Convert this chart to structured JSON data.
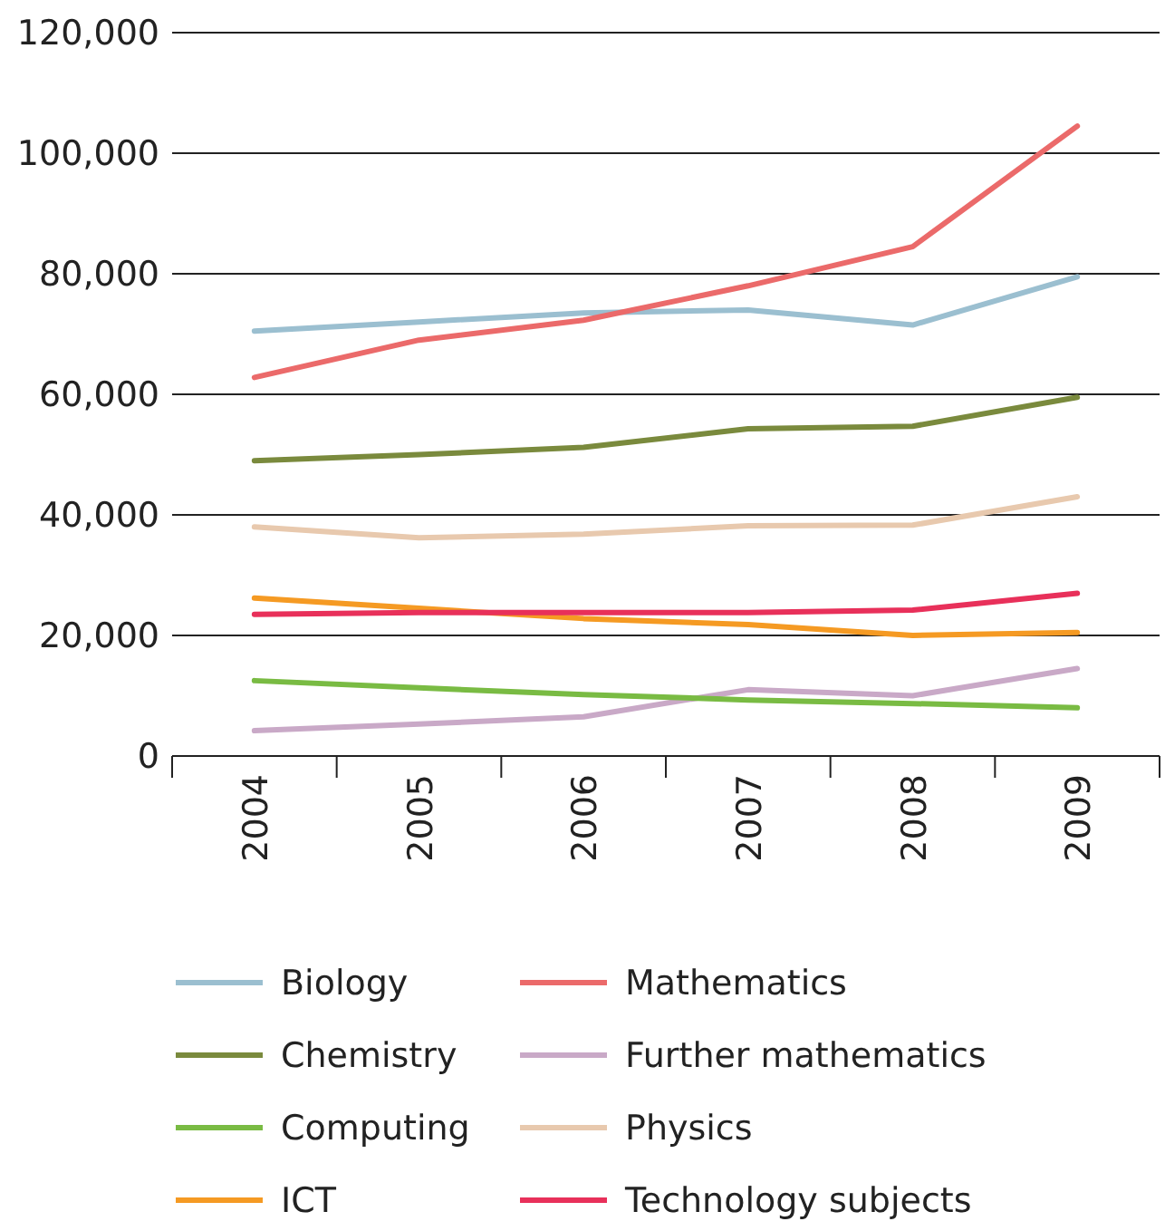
{
  "chart_data": {
    "type": "line",
    "categories": [
      "2004",
      "2005",
      "2006",
      "2007",
      "2008",
      "2009"
    ],
    "ylim": [
      0,
      120000
    ],
    "yticks": [
      {
        "value": 0,
        "label": "0"
      },
      {
        "value": 20000,
        "label": "20,000"
      },
      {
        "value": 40000,
        "label": "40,000"
      },
      {
        "value": 60000,
        "label": "60,000"
      },
      {
        "value": 80000,
        "label": "80,000"
      },
      {
        "value": 100000,
        "label": "100,000"
      },
      {
        "value": 120000,
        "label": "120,000"
      }
    ],
    "grid": "y",
    "legend": "bottom",
    "marker": "none",
    "line_style": "solid",
    "series": [
      {
        "name": "Biology",
        "color": "#9bbfd0",
        "values": [
          70500,
          72000,
          73500,
          74000,
          71500,
          79500
        ]
      },
      {
        "name": "Mathematics",
        "color": "#eb6a6a",
        "values": [
          62800,
          69000,
          72300,
          78000,
          84500,
          104500
        ]
      },
      {
        "name": "Chemistry",
        "color": "#7a8a3d",
        "values": [
          49000,
          50000,
          51200,
          54300,
          54700,
          59500
        ]
      },
      {
        "name": "Further mathematics",
        "color": "#c9a9c7",
        "values": [
          4200,
          5300,
          6500,
          11000,
          10000,
          14500
        ]
      },
      {
        "name": "Computing",
        "color": "#79bb43",
        "values": [
          12500,
          11300,
          10200,
          9300,
          8700,
          8000
        ]
      },
      {
        "name": "Physics",
        "color": "#e8c9ae",
        "values": [
          38000,
          36200,
          36800,
          38200,
          38300,
          43000
        ]
      },
      {
        "name": "ICT",
        "color": "#f59a23",
        "values": [
          26200,
          24500,
          22800,
          21800,
          20000,
          20500
        ]
      },
      {
        "name": "Technology subjects",
        "color": "#e8305a",
        "values": [
          23500,
          23800,
          23800,
          23800,
          24200,
          27000
        ]
      }
    ]
  }
}
